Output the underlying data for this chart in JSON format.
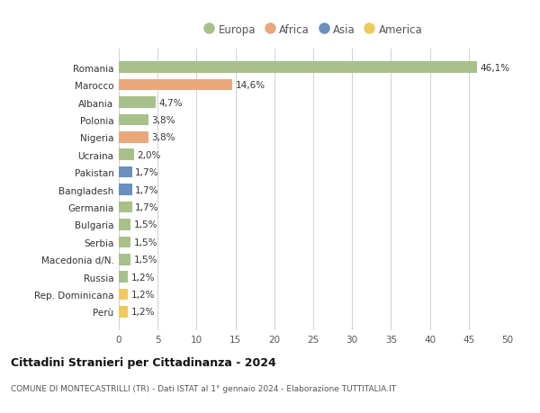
{
  "categories": [
    "Romania",
    "Marocco",
    "Albania",
    "Polonia",
    "Nigeria",
    "Ucraina",
    "Pakistan",
    "Bangladesh",
    "Germania",
    "Bulgaria",
    "Serbia",
    "Macedonia d/N.",
    "Russia",
    "Rep. Dominicana",
    "Perù"
  ],
  "values": [
    46.1,
    14.6,
    4.7,
    3.8,
    3.8,
    2.0,
    1.7,
    1.7,
    1.7,
    1.5,
    1.5,
    1.5,
    1.2,
    1.2,
    1.2
  ],
  "labels": [
    "46,1%",
    "14,6%",
    "4,7%",
    "3,8%",
    "3,8%",
    "2,0%",
    "1,7%",
    "1,7%",
    "1,7%",
    "1,5%",
    "1,5%",
    "1,5%",
    "1,2%",
    "1,2%",
    "1,2%"
  ],
  "continents": [
    "Europa",
    "Africa",
    "Europa",
    "Europa",
    "Africa",
    "Europa",
    "Asia",
    "Asia",
    "Europa",
    "Europa",
    "Europa",
    "Europa",
    "Europa",
    "America",
    "America"
  ],
  "continent_colors": {
    "Europa": "#a8c08a",
    "Africa": "#e8a87c",
    "Asia": "#6b8fbf",
    "America": "#f0c95e"
  },
  "legend_order": [
    "Europa",
    "Africa",
    "Asia",
    "America"
  ],
  "title": "Cittadini Stranieri per Cittadinanza - 2024",
  "subtitle": "COMUNE DI MONTECASTRILLI (TR) - Dati ISTAT al 1° gennaio 2024 - Elaborazione TUTTITALIA.IT",
  "xlim": [
    0,
    50
  ],
  "xticks": [
    0,
    5,
    10,
    15,
    20,
    25,
    30,
    35,
    40,
    45,
    50
  ],
  "background_color": "#ffffff",
  "grid_color": "#d0d0d0",
  "bar_height": 0.65
}
